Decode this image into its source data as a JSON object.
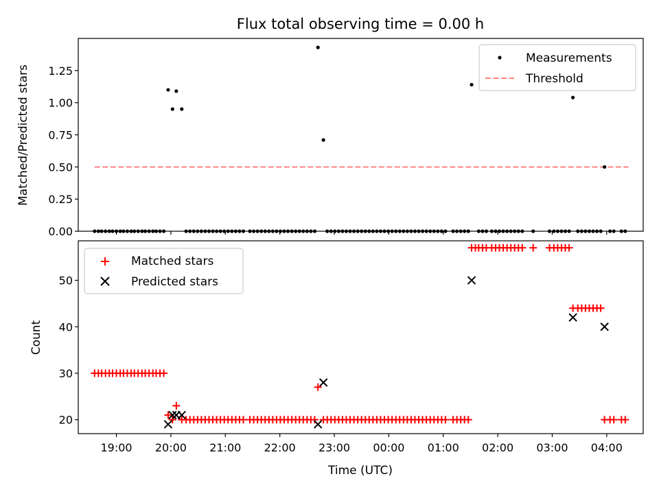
{
  "chart_data": [
    {
      "type": "scatter",
      "title": "Flux total observing time = 0.00 h",
      "xlabel": "",
      "ylabel": "Matched/Predicted stars",
      "ylim": [
        0,
        1.5
      ],
      "yticks": [
        0.0,
        0.25,
        0.5,
        0.75,
        1.0,
        1.25
      ],
      "ytick_labels": [
        "0.00",
        "0.25",
        "0.50",
        "0.75",
        "1.00",
        "1.25"
      ],
      "x_unit": "hours since 19:00 UTC",
      "xlim": [
        -0.7,
        9.67
      ],
      "legend": {
        "position": "top-right",
        "entries": [
          "Measurements",
          "Threshold"
        ]
      },
      "threshold": {
        "name": "Threshold",
        "y": 0.5,
        "x": [
          -0.4,
          9.4
        ],
        "color": "#ff8080"
      },
      "series": [
        {
          "name": "Measurements",
          "marker": "dot",
          "color": "#000000",
          "points": [
            [
              -0.4,
              0
            ],
            [
              -0.33,
              0
            ],
            [
              -0.27,
              0
            ],
            [
              -0.2,
              0
            ],
            [
              -0.13,
              0
            ],
            [
              -0.07,
              0
            ],
            [
              0.0,
              0
            ],
            [
              0.07,
              0
            ],
            [
              0.13,
              0
            ],
            [
              0.2,
              0
            ],
            [
              0.27,
              0
            ],
            [
              0.33,
              0
            ],
            [
              0.4,
              0
            ],
            [
              0.47,
              0
            ],
            [
              0.53,
              0
            ],
            [
              0.6,
              0
            ],
            [
              0.67,
              0
            ],
            [
              0.73,
              0
            ],
            [
              0.8,
              0
            ],
            [
              0.87,
              0
            ],
            [
              0.95,
              1.1
            ],
            [
              1.03,
              0.95
            ],
            [
              1.1,
              1.09
            ],
            [
              1.2,
              0.95
            ],
            [
              1.28,
              0
            ],
            [
              1.35,
              0
            ],
            [
              1.42,
              0
            ],
            [
              1.49,
              0
            ],
            [
              1.56,
              0
            ],
            [
              1.63,
              0
            ],
            [
              1.7,
              0
            ],
            [
              1.77,
              0
            ],
            [
              1.84,
              0
            ],
            [
              1.91,
              0
            ],
            [
              1.98,
              0
            ],
            [
              2.05,
              0
            ],
            [
              2.12,
              0
            ],
            [
              2.19,
              0
            ],
            [
              2.26,
              0
            ],
            [
              2.33,
              0
            ],
            [
              2.45,
              0
            ],
            [
              2.52,
              0
            ],
            [
              2.59,
              0
            ],
            [
              2.66,
              0
            ],
            [
              2.73,
              0
            ],
            [
              2.8,
              0
            ],
            [
              2.87,
              0
            ],
            [
              2.94,
              0
            ],
            [
              3.01,
              0
            ],
            [
              3.08,
              0
            ],
            [
              3.15,
              0
            ],
            [
              3.22,
              0
            ],
            [
              3.29,
              0
            ],
            [
              3.36,
              0
            ],
            [
              3.43,
              0
            ],
            [
              3.5,
              0
            ],
            [
              3.57,
              0
            ],
            [
              3.64,
              0
            ],
            [
              3.7,
              1.43
            ],
            [
              3.8,
              0.71
            ],
            [
              3.87,
              0
            ],
            [
              3.94,
              0
            ],
            [
              4.01,
              0
            ],
            [
              4.08,
              0
            ],
            [
              4.15,
              0
            ],
            [
              4.22,
              0
            ],
            [
              4.29,
              0
            ],
            [
              4.36,
              0
            ],
            [
              4.43,
              0
            ],
            [
              4.5,
              0
            ],
            [
              4.57,
              0
            ],
            [
              4.64,
              0
            ],
            [
              4.71,
              0
            ],
            [
              4.78,
              0
            ],
            [
              4.85,
              0
            ],
            [
              4.92,
              0
            ],
            [
              4.99,
              0
            ],
            [
              5.06,
              0
            ],
            [
              5.13,
              0
            ],
            [
              5.2,
              0
            ],
            [
              5.27,
              0
            ],
            [
              5.34,
              0
            ],
            [
              5.41,
              0
            ],
            [
              5.48,
              0
            ],
            [
              5.55,
              0
            ],
            [
              5.62,
              0
            ],
            [
              5.69,
              0
            ],
            [
              5.76,
              0
            ],
            [
              5.83,
              0
            ],
            [
              5.9,
              0
            ],
            [
              5.97,
              0
            ],
            [
              6.04,
              0
            ],
            [
              6.18,
              0
            ],
            [
              6.25,
              0
            ],
            [
              6.32,
              0
            ],
            [
              6.39,
              0
            ],
            [
              6.46,
              0
            ],
            [
              6.52,
              1.14
            ],
            [
              6.65,
              0
            ],
            [
              6.72,
              0
            ],
            [
              6.79,
              0
            ],
            [
              6.89,
              0
            ],
            [
              6.96,
              0
            ],
            [
              7.03,
              0
            ],
            [
              7.1,
              0
            ],
            [
              7.17,
              0
            ],
            [
              7.24,
              0
            ],
            [
              7.31,
              0
            ],
            [
              7.38,
              0
            ],
            [
              7.45,
              0
            ],
            [
              7.65,
              0
            ],
            [
              7.95,
              0
            ],
            [
              8.03,
              0
            ],
            [
              8.1,
              0
            ],
            [
              8.17,
              0
            ],
            [
              8.24,
              0
            ],
            [
              8.31,
              0
            ],
            [
              8.38,
              1.04
            ],
            [
              8.47,
              0
            ],
            [
              8.54,
              0
            ],
            [
              8.61,
              0
            ],
            [
              8.68,
              0
            ],
            [
              8.75,
              0
            ],
            [
              8.82,
              0
            ],
            [
              8.89,
              0
            ],
            [
              8.96,
              0.5
            ],
            [
              9.06,
              0
            ],
            [
              9.13,
              0
            ],
            [
              9.27,
              0
            ],
            [
              9.34,
              0
            ]
          ]
        }
      ]
    },
    {
      "type": "scatter",
      "title": "",
      "xlabel": "Time (UTC)",
      "ylabel": "Count",
      "ylim": [
        17.0,
        58.5
      ],
      "yticks": [
        20,
        30,
        40,
        50
      ],
      "ytick_labels": [
        "20",
        "30",
        "40",
        "50"
      ],
      "x_unit": "hours since 19:00 UTC",
      "xlim": [
        -0.7,
        9.67
      ],
      "xticks": [
        0,
        1,
        2,
        3,
        4,
        5,
        6,
        7,
        8,
        9
      ],
      "xtick_labels": [
        "19:00",
        "20:00",
        "21:00",
        "22:00",
        "23:00",
        "00:00",
        "01:00",
        "02:00",
        "03:00",
        "04:00"
      ],
      "legend": {
        "position": "top-left",
        "entries": [
          "Matched stars",
          "Predicted stars"
        ]
      },
      "series": [
        {
          "name": "Matched stars",
          "marker": "plus",
          "color": "#ff0000",
          "points": [
            [
              -0.4,
              30
            ],
            [
              -0.33,
              30
            ],
            [
              -0.27,
              30
            ],
            [
              -0.2,
              30
            ],
            [
              -0.13,
              30
            ],
            [
              -0.07,
              30
            ],
            [
              0.0,
              30
            ],
            [
              0.07,
              30
            ],
            [
              0.13,
              30
            ],
            [
              0.2,
              30
            ],
            [
              0.27,
              30
            ],
            [
              0.33,
              30
            ],
            [
              0.4,
              30
            ],
            [
              0.47,
              30
            ],
            [
              0.53,
              30
            ],
            [
              0.6,
              30
            ],
            [
              0.67,
              30
            ],
            [
              0.73,
              30
            ],
            [
              0.8,
              30
            ],
            [
              0.87,
              30
            ],
            [
              0.95,
              21
            ],
            [
              1.03,
              20
            ],
            [
              1.1,
              23
            ],
            [
              1.2,
              20
            ],
            [
              1.28,
              20
            ],
            [
              1.35,
              20
            ],
            [
              1.42,
              20
            ],
            [
              1.49,
              20
            ],
            [
              1.56,
              20
            ],
            [
              1.63,
              20
            ],
            [
              1.7,
              20
            ],
            [
              1.77,
              20
            ],
            [
              1.84,
              20
            ],
            [
              1.91,
              20
            ],
            [
              1.98,
              20
            ],
            [
              2.05,
              20
            ],
            [
              2.12,
              20
            ],
            [
              2.19,
              20
            ],
            [
              2.26,
              20
            ],
            [
              2.33,
              20
            ],
            [
              2.45,
              20
            ],
            [
              2.52,
              20
            ],
            [
              2.59,
              20
            ],
            [
              2.66,
              20
            ],
            [
              2.73,
              20
            ],
            [
              2.8,
              20
            ],
            [
              2.87,
              20
            ],
            [
              2.94,
              20
            ],
            [
              3.01,
              20
            ],
            [
              3.08,
              20
            ],
            [
              3.15,
              20
            ],
            [
              3.22,
              20
            ],
            [
              3.29,
              20
            ],
            [
              3.36,
              20
            ],
            [
              3.43,
              20
            ],
            [
              3.5,
              20
            ],
            [
              3.57,
              20
            ],
            [
              3.64,
              20
            ],
            [
              3.7,
              27
            ],
            [
              3.8,
              20
            ],
            [
              3.87,
              20
            ],
            [
              3.94,
              20
            ],
            [
              4.01,
              20
            ],
            [
              4.08,
              20
            ],
            [
              4.15,
              20
            ],
            [
              4.22,
              20
            ],
            [
              4.29,
              20
            ],
            [
              4.36,
              20
            ],
            [
              4.43,
              20
            ],
            [
              4.5,
              20
            ],
            [
              4.57,
              20
            ],
            [
              4.64,
              20
            ],
            [
              4.71,
              20
            ],
            [
              4.78,
              20
            ],
            [
              4.85,
              20
            ],
            [
              4.92,
              20
            ],
            [
              4.99,
              20
            ],
            [
              5.06,
              20
            ],
            [
              5.13,
              20
            ],
            [
              5.2,
              20
            ],
            [
              5.27,
              20
            ],
            [
              5.34,
              20
            ],
            [
              5.41,
              20
            ],
            [
              5.48,
              20
            ],
            [
              5.55,
              20
            ],
            [
              5.62,
              20
            ],
            [
              5.69,
              20
            ],
            [
              5.76,
              20
            ],
            [
              5.83,
              20
            ],
            [
              5.9,
              20
            ],
            [
              5.97,
              20
            ],
            [
              6.04,
              20
            ],
            [
              6.18,
              20
            ],
            [
              6.25,
              20
            ],
            [
              6.32,
              20
            ],
            [
              6.39,
              20
            ],
            [
              6.46,
              20
            ],
            [
              6.52,
              57
            ],
            [
              6.59,
              57
            ],
            [
              6.65,
              57
            ],
            [
              6.72,
              57
            ],
            [
              6.79,
              57
            ],
            [
              6.89,
              57
            ],
            [
              6.96,
              57
            ],
            [
              7.03,
              57
            ],
            [
              7.1,
              57
            ],
            [
              7.17,
              57
            ],
            [
              7.24,
              57
            ],
            [
              7.31,
              57
            ],
            [
              7.38,
              57
            ],
            [
              7.45,
              57
            ],
            [
              7.65,
              57
            ],
            [
              7.95,
              57
            ],
            [
              8.03,
              57
            ],
            [
              8.1,
              57
            ],
            [
              8.17,
              57
            ],
            [
              8.24,
              57
            ],
            [
              8.31,
              57
            ],
            [
              8.38,
              44
            ],
            [
              8.47,
              44
            ],
            [
              8.54,
              44
            ],
            [
              8.61,
              44
            ],
            [
              8.68,
              44
            ],
            [
              8.75,
              44
            ],
            [
              8.82,
              44
            ],
            [
              8.89,
              44
            ],
            [
              8.96,
              20
            ],
            [
              9.06,
              20
            ],
            [
              9.13,
              20
            ],
            [
              9.27,
              20
            ],
            [
              9.34,
              20
            ]
          ]
        },
        {
          "name": "Predicted stars",
          "marker": "x",
          "color": "#000000",
          "points": [
            [
              0.95,
              19
            ],
            [
              1.03,
              21
            ],
            [
              1.1,
              21
            ],
            [
              1.2,
              21
            ],
            [
              3.7,
              19
            ],
            [
              3.8,
              28
            ],
            [
              6.52,
              50
            ],
            [
              8.38,
              42
            ],
            [
              8.96,
              40
            ]
          ]
        }
      ]
    }
  ]
}
